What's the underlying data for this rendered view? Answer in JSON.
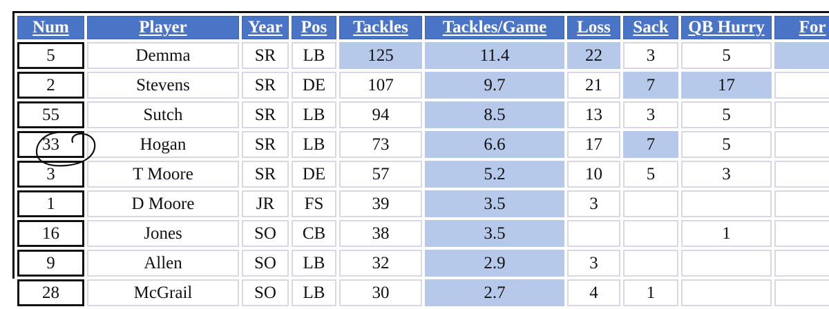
{
  "columns": [
    "Num",
    "Player",
    "Year",
    "Pos",
    "Tackles",
    "Tackles/Game",
    "Loss",
    "Sack",
    "QB Hurry",
    "For"
  ],
  "rows": [
    [
      "5",
      "Demma",
      "SR",
      "LB",
      "125",
      "11.4",
      "22",
      "3",
      "5",
      ""
    ],
    [
      "2",
      "Stevens",
      "SR",
      "DE",
      "107",
      "9.7",
      "21",
      "7",
      "17",
      ""
    ],
    [
      "55",
      "Sutch",
      "SR",
      "LB",
      "94",
      "8.5",
      "13",
      "3",
      "5",
      ""
    ],
    [
      "33",
      "Hogan",
      "SR",
      "LB",
      "73",
      "6.6",
      "17",
      "7",
      "5",
      ""
    ],
    [
      "3",
      "T Moore",
      "SR",
      "DE",
      "57",
      "5.2",
      "10",
      "5",
      "3",
      ""
    ],
    [
      "1",
      "D Moore",
      "JR",
      "FS",
      "39",
      "3.5",
      "3",
      "",
      "",
      ""
    ],
    [
      "16",
      "Jones",
      "SO",
      "CB",
      "38",
      "3.5",
      "",
      "",
      "1",
      ""
    ],
    [
      "9",
      "Allen",
      "SO",
      "LB",
      "32",
      "2.9",
      "3",
      "",
      "",
      ""
    ],
    [
      "28",
      "McGrail",
      "SO",
      "LB",
      "30",
      "2.7",
      "4",
      "1",
      "",
      ""
    ]
  ],
  "highlighted_cells": [
    [
      0,
      4
    ],
    [
      0,
      5
    ],
    [
      0,
      6
    ],
    [
      0,
      9
    ],
    [
      1,
      5
    ],
    [
      1,
      7
    ],
    [
      1,
      8
    ],
    [
      2,
      5
    ],
    [
      3,
      5
    ],
    [
      3,
      7
    ],
    [
      4,
      5
    ],
    [
      5,
      5
    ],
    [
      6,
      5
    ],
    [
      7,
      5
    ],
    [
      8,
      5
    ]
  ],
  "colors": {
    "header_bg": "#4a74c6",
    "header_text": "#ffffff",
    "highlight": "#b7c9ea",
    "cell_border": "#d9d6e8",
    "num_border": "#111111",
    "pen_circle": "#111111"
  },
  "annotation": {
    "type": "hand-drawn-circle",
    "around_value": "33"
  }
}
